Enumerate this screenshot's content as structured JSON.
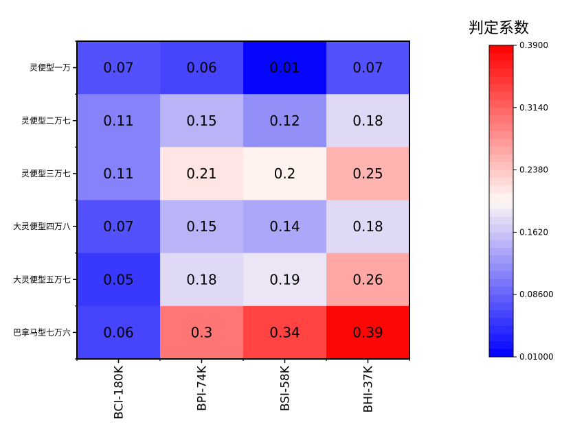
{
  "chart_data": {
    "type": "heatmap",
    "title": "",
    "xlabel": "",
    "ylabel": "",
    "x_categories": [
      "BCI-180K",
      "BPI-74K",
      "BSI-58K",
      "BHI-37K"
    ],
    "y_categories": [
      "灵便型一万",
      "灵便型二万七",
      "灵便型三万七",
      "大灵便型四万八",
      "大灵便型五万七",
      "巴拿马型七万六"
    ],
    "values": [
      [
        0.07,
        0.06,
        0.01,
        0.07
      ],
      [
        0.11,
        0.15,
        0.12,
        0.18
      ],
      [
        0.11,
        0.21,
        0.2,
        0.25
      ],
      [
        0.07,
        0.15,
        0.14,
        0.18
      ],
      [
        0.05,
        0.18,
        0.19,
        0.26
      ],
      [
        0.06,
        0.3,
        0.34,
        0.39
      ]
    ],
    "colorbar": {
      "title": "判定系数",
      "min": 0.01,
      "max": 0.39,
      "ticks": [
        "0.3900",
        "0.3140",
        "0.2380",
        "0.1620",
        "0.08600",
        "0.01000"
      ],
      "low_color": "#0000ff",
      "mid_color": "#fff8f5",
      "high_color": "#ff0000",
      "levels": 40
    }
  }
}
